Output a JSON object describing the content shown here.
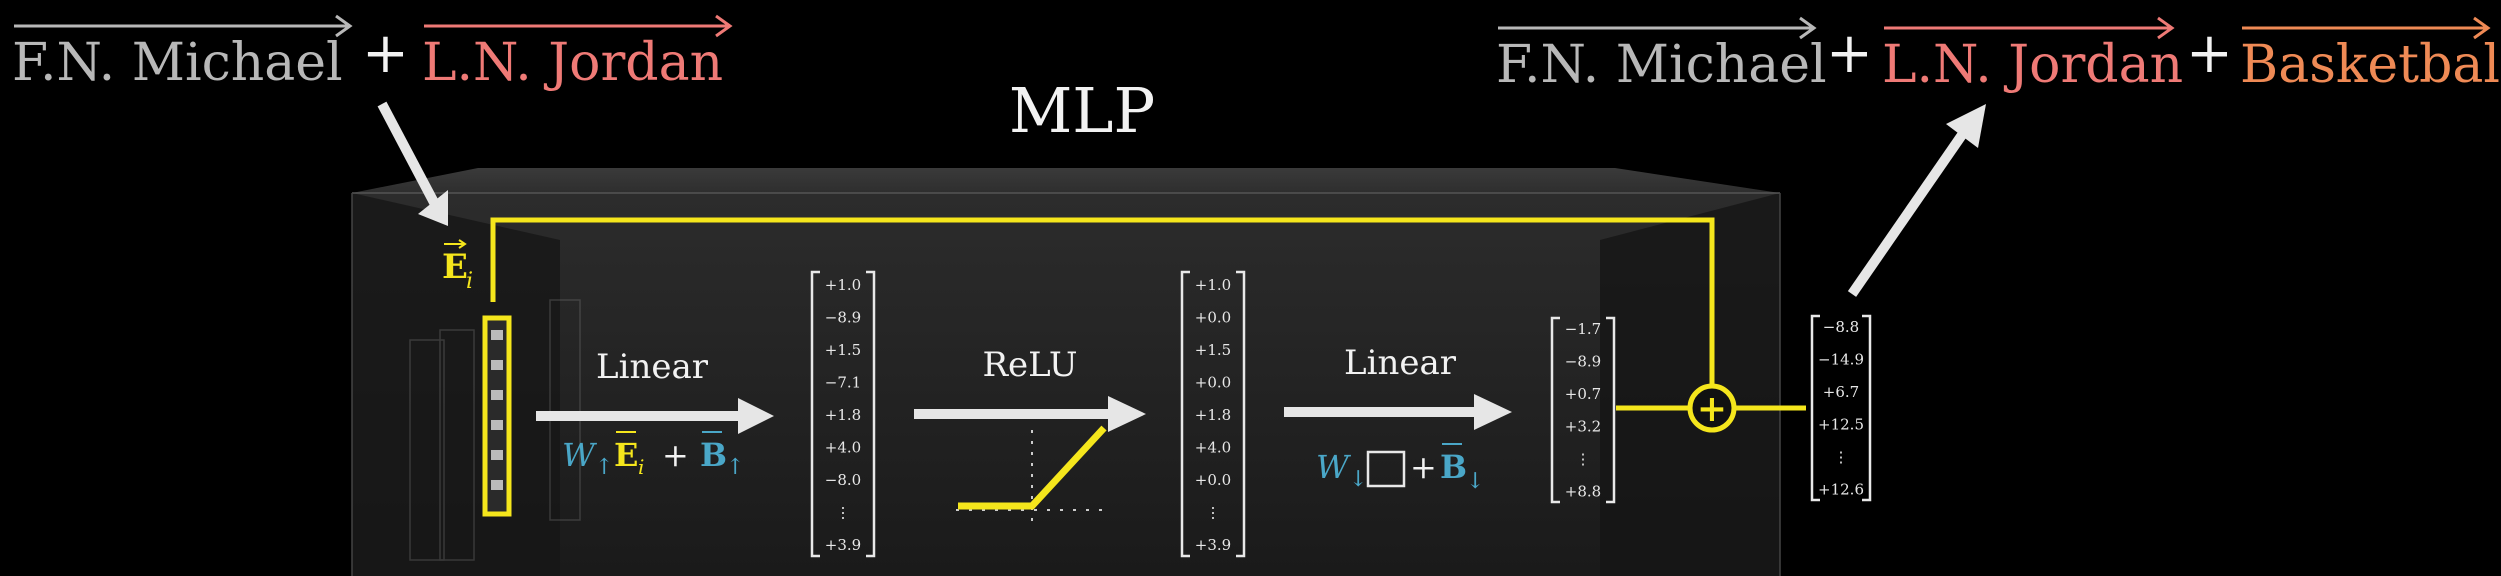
{
  "left_top": {
    "term1": "F.N. Michael",
    "plus": "+",
    "term2": "L.N. Jordan"
  },
  "right_top": {
    "term1": "F.N. Michael",
    "plus1": "+",
    "term2": "L.N. Jordan",
    "plus2": "+",
    "term3": "Basketball"
  },
  "block_title": "MLP",
  "input_label": {
    "symbol": "E",
    "sub": "i"
  },
  "stage1": {
    "title": "Linear",
    "W": "W",
    "arrow_sub": "↑",
    "E": "E",
    "E_sub": "i",
    "plus": "+",
    "B": "B",
    "B_sub": "↑"
  },
  "stage2": {
    "title": "ReLU"
  },
  "stage3": {
    "title": "Linear",
    "W": "W",
    "arrow_sub": "↓",
    "plus": "+",
    "B": "B",
    "B_sub": "↓"
  },
  "vectors": {
    "after_linear1": [
      "+1.0",
      "−8.9",
      "+1.5",
      "−7.1",
      "+1.8",
      "+4.0",
      "−8.0",
      "⋮",
      "+3.9"
    ],
    "after_relu": [
      "+1.0",
      "+0.0",
      "+1.5",
      "+0.0",
      "+1.8",
      "+4.0",
      "+0.0",
      "⋮",
      "+3.9"
    ],
    "after_linear2": [
      "−1.7",
      "−8.9",
      "+0.7",
      "+3.2",
      "⋮",
      "+8.8"
    ],
    "output": [
      "−8.8",
      "−14.9",
      "+6.7",
      "+12.5",
      "⋮",
      "+12.6"
    ]
  },
  "sum_symbol": "+",
  "colors": {
    "yellow": "#f5e61c",
    "blue": "#4aa7c8",
    "salmon": "#ef7a76",
    "orange": "#ef8a55",
    "gray": "#b8b8b8"
  }
}
